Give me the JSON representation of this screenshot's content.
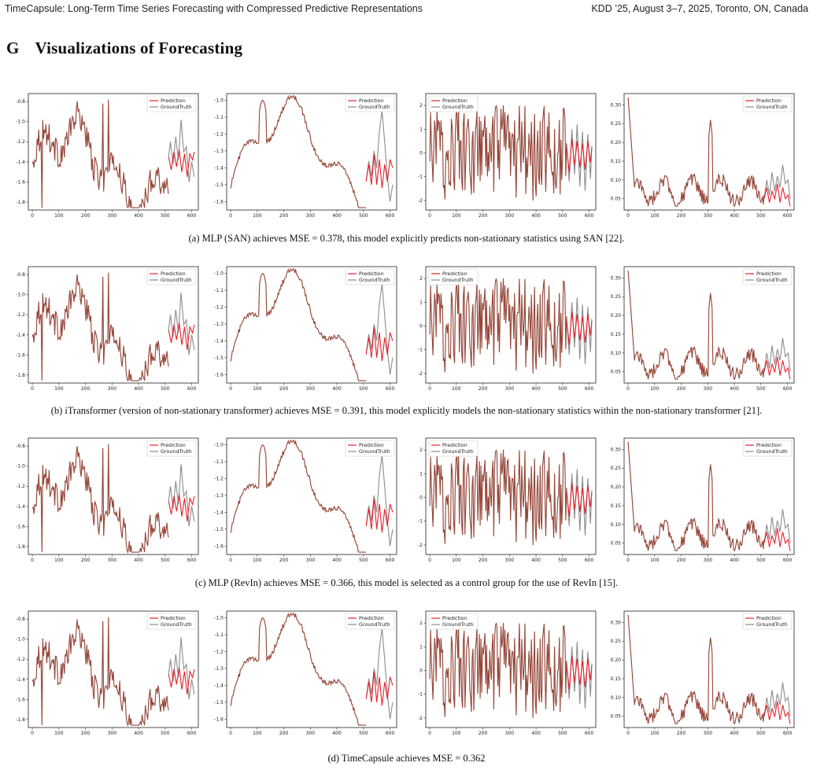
{
  "header": {
    "left": "TimeCapsule: Long-Term Time Series Forecasting with Compressed Predictive Representations",
    "right": "KDD ’25, August 3–7, 2025, Toronto, ON, Canada"
  },
  "section": {
    "number": "G",
    "title": "Visualizations of Forecasting"
  },
  "legend": {
    "prediction": "Prediction",
    "ground_truth": "GroundTruth"
  },
  "colors": {
    "prediction": "#e8202a",
    "ground_truth": "#8c8c8c",
    "history": "#96483a"
  },
  "rows": [
    {
      "caption": "(a)  MLP (SAN) achieves MSE = 0.378, this model explicitly predicts non-stationary statistics using SAN [22]."
    },
    {
      "caption": "(b)  iTransformer (version of non-stationary transformer) achieves MSE = 0.391, this model explicitly models the non-stationary statistics within the non-stationary transformer [21]."
    },
    {
      "caption": "(c)  MLP (RevIn) achieves MSE = 0.366, this model is selected as a control group for the use of RevIn [15]."
    },
    {
      "caption": "(d)  TimeCapsule achieves MSE = 0.362"
    }
  ],
  "chart_data": [
    {
      "type": "line",
      "panel": 1,
      "legend_position": "top-right",
      "xticks": [
        "0",
        "100",
        "200",
        "300",
        "400",
        "500",
        "600"
      ],
      "xlim": [
        -15,
        625
      ],
      "yticks": [
        "-0.8",
        "-1.0",
        "-1.2",
        "-1.4",
        "-1.6",
        "-1.8"
      ],
      "ylim": [
        -1.88,
        -0.72
      ],
      "history_end": 513,
      "length": 610,
      "series": [
        {
          "name": "Prediction",
          "x": [
            513,
            523,
            533,
            543,
            553,
            563,
            573,
            583,
            593,
            603,
            610
          ],
          "y": [
            -1.35,
            -1.48,
            -1.3,
            -1.45,
            -1.28,
            -1.5,
            -1.32,
            -1.55,
            -1.32,
            -1.38,
            -1.3
          ]
        },
        {
          "name": "GroundTruth",
          "x": [
            513,
            520,
            530,
            540,
            550,
            560,
            570,
            580,
            590,
            600,
            610
          ],
          "y": [
            -1.35,
            -1.2,
            -1.42,
            -1.15,
            -1.38,
            -0.98,
            -1.3,
            -1.25,
            -1.6,
            -1.4,
            -1.55
          ]
        }
      ]
    },
    {
      "type": "line",
      "panel": 2,
      "legend_position": "top-right",
      "xticks": [
        "0",
        "100",
        "200",
        "300",
        "400",
        "500",
        "600"
      ],
      "xlim": [
        -15,
        625
      ],
      "yticks": [
        "-1.0",
        "-1.1",
        "-1.2",
        "-1.3",
        "-1.4",
        "-1.5",
        "-1.6"
      ],
      "ylim": [
        -1.65,
        -0.96
      ],
      "history_end": 510,
      "length": 610,
      "series": [
        {
          "name": "Prediction",
          "x": [
            510,
            520,
            530,
            540,
            550,
            560,
            570,
            580,
            590,
            600,
            610
          ],
          "y": [
            -1.48,
            -1.38,
            -1.5,
            -1.32,
            -1.5,
            -1.35,
            -1.52,
            -1.38,
            -1.48,
            -1.35,
            -1.4
          ]
        },
        {
          "name": "GroundTruth",
          "x": [
            510,
            520,
            530,
            540,
            550,
            560,
            570,
            580,
            590,
            600,
            610
          ],
          "y": [
            -1.48,
            -1.36,
            -1.45,
            -1.3,
            -1.4,
            -1.18,
            -1.06,
            -1.25,
            -1.45,
            -1.6,
            -1.5
          ]
        }
      ]
    },
    {
      "type": "line",
      "panel": 3,
      "legend_position": "top-left",
      "xticks": [
        "0",
        "100",
        "200",
        "300",
        "400",
        "500",
        "600"
      ],
      "xlim": [
        -15,
        625
      ],
      "yticks": [
        "2",
        "1",
        "0",
        "-1",
        "-2"
      ],
      "ylim": [
        -2.4,
        2.5
      ],
      "history_end": 515,
      "length": 610,
      "series": [
        {
          "name": "Prediction",
          "x": [
            515,
            525,
            535,
            545,
            555,
            565,
            575,
            585,
            595,
            605,
            610
          ],
          "y": [
            0.3,
            -0.8,
            0.6,
            -0.5,
            0.5,
            -0.6,
            0.4,
            -0.7,
            0.5,
            -0.4,
            0.2
          ]
        },
        {
          "name": "GroundTruth",
          "x": [
            515,
            525,
            535,
            545,
            555,
            565,
            575,
            585,
            595,
            605,
            610
          ],
          "y": [
            0.4,
            -1.2,
            1.0,
            -0.9,
            1.2,
            -1.4,
            0.9,
            -1.6,
            0.8,
            -1.1,
            0.3
          ]
        }
      ]
    },
    {
      "type": "line",
      "panel": 4,
      "legend_position": "top-right",
      "xticks": [
        "0",
        "100",
        "200",
        "300",
        "400",
        "500",
        "600"
      ],
      "xlim": [
        -15,
        625
      ],
      "yticks": [
        "0.30",
        "0.25",
        "0.20",
        "0.15",
        "0.10",
        "0.05"
      ],
      "ylim": [
        0.02,
        0.33
      ],
      "history_end": 512,
      "length": 610,
      "series": [
        {
          "name": "Prediction",
          "x": [
            512,
            522,
            532,
            542,
            552,
            562,
            572,
            582,
            592,
            602,
            610
          ],
          "y": [
            0.05,
            0.08,
            0.04,
            0.07,
            0.05,
            0.09,
            0.04,
            0.08,
            0.05,
            0.06,
            0.03
          ]
        },
        {
          "name": "GroundTruth",
          "x": [
            512,
            522,
            532,
            542,
            552,
            562,
            572,
            582,
            592,
            602,
            610
          ],
          "y": [
            0.05,
            0.1,
            0.06,
            0.12,
            0.07,
            0.11,
            0.08,
            0.14,
            0.09,
            0.1,
            0.05
          ]
        }
      ]
    }
  ]
}
